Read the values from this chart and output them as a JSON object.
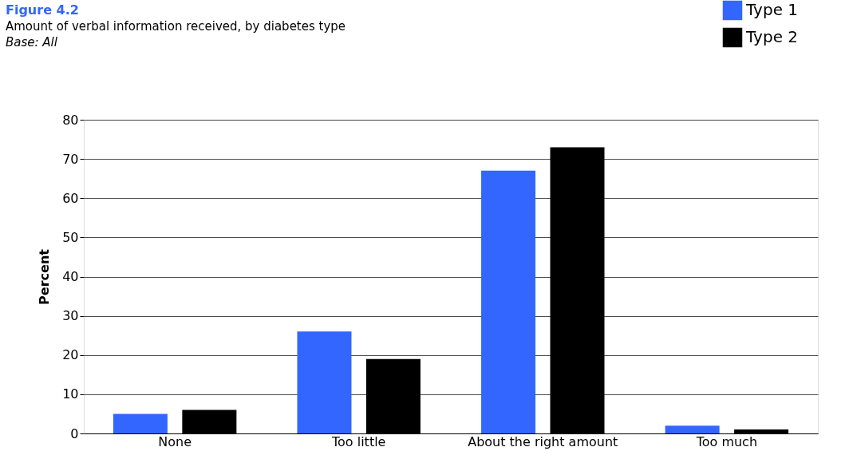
{
  "chart_data": {
    "type": "bar",
    "title": "Figure 4.2",
    "subtitle": "Amount of verbal information received, by diabetes type",
    "annotations": [
      "Base: All"
    ],
    "ylabel": "Percent",
    "categories": [
      "None",
      "Too little",
      "About the right amount",
      "Too much"
    ],
    "series": [
      {
        "name": "Type 1",
        "color": "#3366ff",
        "values": [
          5,
          26,
          67,
          2
        ]
      },
      {
        "name": "Type 2",
        "color": "#000000",
        "values": [
          6,
          19,
          73,
          1
        ]
      }
    ],
    "ylim": [
      0,
      80
    ],
    "yticks": [
      0,
      10,
      20,
      30,
      40,
      50,
      60,
      70,
      80
    ],
    "grid": "y",
    "legend": "top right"
  }
}
